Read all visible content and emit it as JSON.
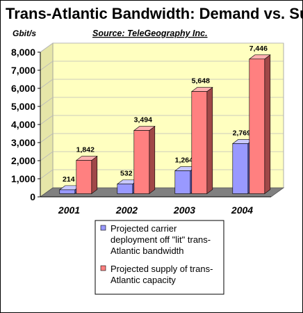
{
  "chart_data": {
    "type": "bar",
    "title": "Trans-Atlantic Bandwidth: Demand vs. Supply",
    "source": "Source: TeleGeography Inc.",
    "ylabel": "Gbit/s",
    "xlabel": "",
    "ylim": [
      0,
      8000
    ],
    "yticks": [
      "0",
      "1,000",
      "2,000",
      "3,000",
      "4,000",
      "5,000",
      "6,000",
      "7,000",
      "8,000"
    ],
    "categories": [
      "2001",
      "2002",
      "2003",
      "2004"
    ],
    "grid": false,
    "legend_position": "bottom",
    "series": [
      {
        "name": "Projected carrier deployment off \"lit\" trans-Atlantic bandwidth",
        "legend_lines": [
          "Projected carrier",
          "deployment off \"lit\" trans-",
          "Atlantic bandwidth"
        ],
        "values": [
          214,
          532,
          1264,
          2769
        ],
        "labels": [
          "214",
          "532",
          "1,264",
          "2,769"
        ],
        "color": "#9999FF",
        "side_color": "#5A5AB0",
        "top_color": "#C8C8FF"
      },
      {
        "name": "Projected supply of trans-Atlantic capacity",
        "legend_lines": [
          "Projected supply of trans-",
          "Atlantic capacity"
        ],
        "values": [
          1842,
          3494,
          5648,
          7446
        ],
        "labels": [
          "1,842",
          "3,494",
          "5,648",
          "7,446"
        ],
        "color": "#FF8080",
        "side_color": "#A04848",
        "top_color": "#FFB0B0"
      }
    ],
    "wall_color": "#FFFFC0",
    "floor_color": "#808080"
  }
}
